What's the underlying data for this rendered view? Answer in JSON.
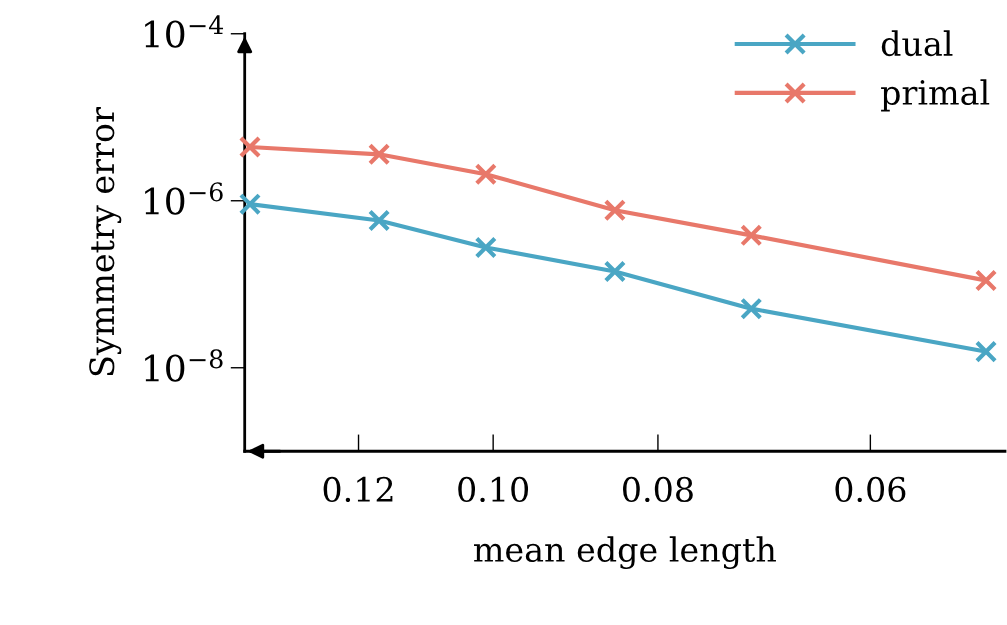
{
  "chart_data": {
    "type": "line",
    "xlabel": "mean edge length",
    "ylabel": "Symmetry error",
    "log": "xy",
    "xlim": [
      0.14,
      0.05
    ],
    "ylim": [
      1e-09,
      0.0001
    ],
    "xticks": [
      {
        "value": 0.12,
        "label": "0.12"
      },
      {
        "value": 0.1,
        "label": "0.10"
      },
      {
        "value": 0.08,
        "label": "0.08"
      },
      {
        "value": 0.06,
        "label": "0.06"
      }
    ],
    "yticks": [
      {
        "value": 0.0001,
        "label": "10$^{−4}$"
      },
      {
        "value": 1e-06,
        "label": "10$^{−6}$"
      },
      {
        "value": 1e-08,
        "label": "10$^{−8}$"
      }
    ],
    "x": [
      0.139,
      0.1167,
      0.101,
      0.0848,
      0.0705,
      0.0513
    ],
    "series": [
      {
        "name": "dual",
        "color": "#4aa6c4",
        "values": [
          9.1e-07,
          5.8e-07,
          2.76e-07,
          1.42e-07,
          5.1e-08,
          1.56e-08
        ]
      },
      {
        "name": "primal",
        "color": "#e8786a",
        "values": [
          4.4e-06,
          3.6e-06,
          2.08e-06,
          7.7e-07,
          3.85e-07,
          1.11e-07
        ]
      }
    ],
    "marker": "cross",
    "line_style": "solid",
    "grid": false,
    "legend": "top right"
  }
}
